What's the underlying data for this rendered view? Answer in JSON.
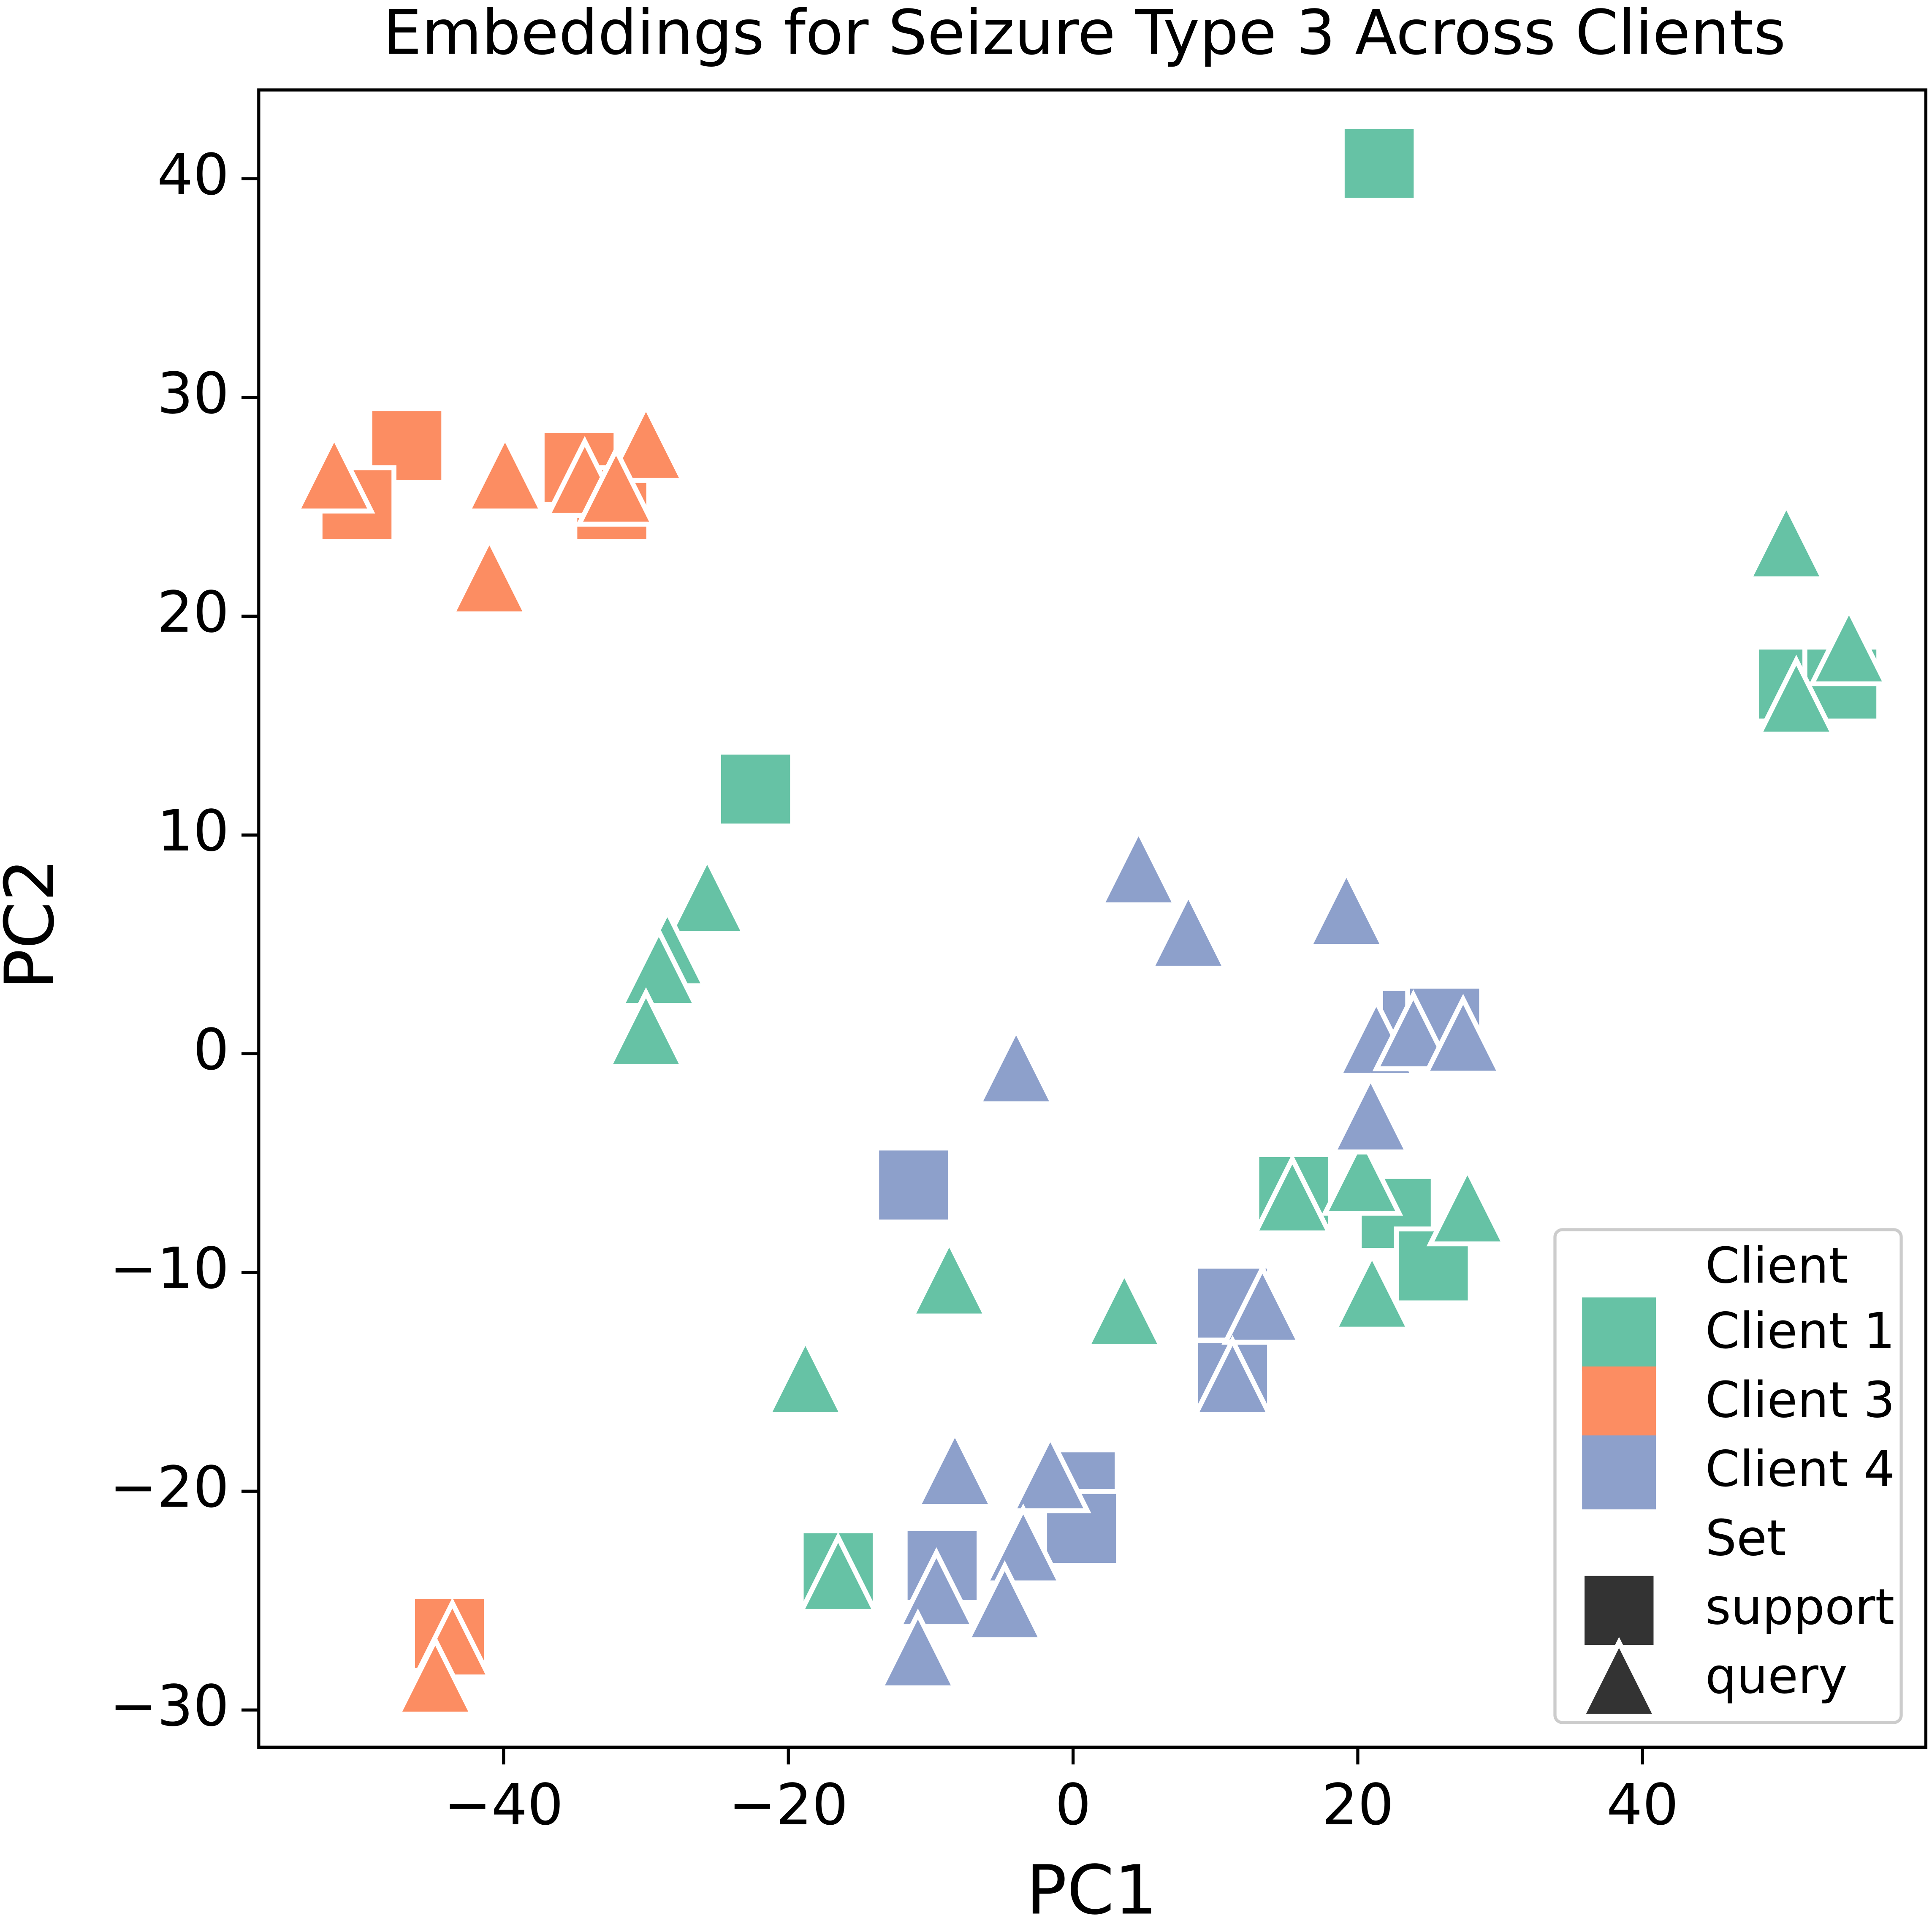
{
  "chart_data": {
    "type": "scatter",
    "title": "Embeddings for Seizure Type 3 Across Clients",
    "x_label": "PC1",
    "y_label": "PC2",
    "xlim": [
      -57.2,
      59.9
    ],
    "ylim": [
      -31.7,
      44.06
    ],
    "xticks": [
      {
        "value": -40,
        "label": "−40"
      },
      {
        "value": -20,
        "label": "−20"
      },
      0,
      20,
      40
    ],
    "yticks": [
      {
        "value": -30,
        "label": "−30"
      },
      {
        "value": -20,
        "label": "−20"
      },
      {
        "value": -10,
        "label": "−10"
      },
      0,
      10,
      20,
      30,
      40
    ],
    "legend_position": "lower right",
    "hue_title": "Client",
    "style_title": "Set",
    "sets": [
      {
        "name": "support",
        "marker": "square"
      },
      {
        "name": "query",
        "marker": "triangle"
      }
    ],
    "series": [
      {
        "name": "Client 1",
        "color": "#66c2a5",
        "sets": [
          {
            "x": [
              21.5,
              -22.3,
              15.5,
              22.7,
              25.3,
              50.6,
              54.0,
              -16.5
            ],
            "y": [
              40.7,
              12.1,
              -6.3,
              -7.3,
              -9.7,
              16.9,
              16.9,
              -23.5
            ]
          },
          {
            "x": [
              50.1,
              54.5,
              50.8,
              -25.7,
              -28.5,
              -29.1,
              -30.0,
              15.4,
              20.3,
              27.7,
              21.0,
              3.6,
              -8.7,
              -18.8,
              -16.5
            ],
            "y": [
              23.4,
              18.6,
              16.3,
              7.2,
              4.8,
              3.9,
              1.1,
              -6.5,
              -5.6,
              -7.0,
              -10.9,
              -11.7,
              -10.3,
              -14.8,
              -23.8
            ]
          }
        ]
      },
      {
        "name": "Client 3",
        "color": "#fc8d62",
        "sets": [
          {
            "x": [
              -46.8,
              -50.3,
              -34.7,
              -32.4,
              -43.8
            ],
            "y": [
              27.8,
              25.1,
              26.8,
              25.1,
              -26.5
            ]
          },
          {
            "x": [
              -51.9,
              -39.9,
              -41.0,
              -34.3,
              -30.0,
              -32.1,
              -43.6,
              -44.8
            ],
            "y": [
              26.5,
              26.5,
              21.8,
              26.3,
              27.9,
              25.9,
              -26.8,
              -28.5
            ]
          }
        ]
      },
      {
        "name": "Client 4",
        "color": "#8da0cb",
        "sets": [
          {
            "x": [
              -11.2,
              11.2,
              11.2,
              0.5,
              0.6,
              -9.2,
              24.2,
              26.1
            ],
            "y": [
              -6.0,
              -11.4,
              -14.8,
              -19.8,
              -21.7,
              -23.4,
              1.3,
              1.4
            ]
          },
          {
            "x": [
              4.6,
              8.1,
              19.2,
              -4.0,
              21.3,
              23.9,
              27.4,
              20.9,
              13.3,
              11.2,
              -8.3,
              -1.6,
              -3.5,
              -9.6,
              -4.8,
              -10.9
            ],
            "y": [
              8.5,
              5.6,
              6.6,
              -0.6,
              0.7,
              1.0,
              0.8,
              -2.8,
              -11.5,
              -14.8,
              -19.0,
              -19.2,
              -22.5,
              -24.5,
              -25.1,
              -27.3
            ]
          }
        ]
      }
    ]
  }
}
